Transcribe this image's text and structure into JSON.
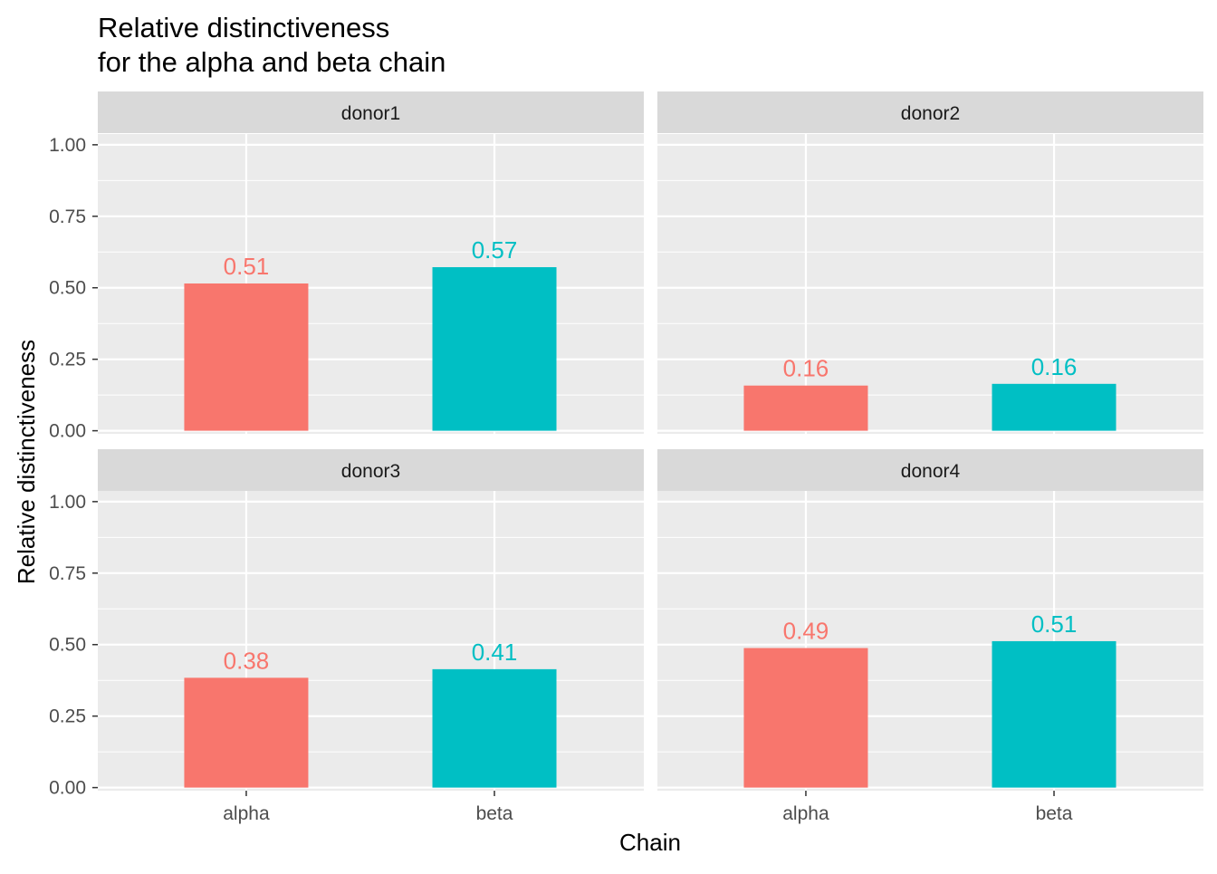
{
  "chart_data": {
    "type": "bar",
    "title": [
      "Relative distinctiveness",
      "for the alpha and beta chain"
    ],
    "xlabel": "Chain",
    "ylabel": "Relative distinctiveness",
    "categories": [
      "alpha",
      "beta"
    ],
    "ylim": [
      0,
      1.1
    ],
    "yticks": [
      "0.00",
      "0.25",
      "0.50",
      "0.75",
      "1.00"
    ],
    "yticks_values": [
      0,
      0.25,
      0.5,
      0.75,
      1.0
    ],
    "grid": true,
    "legend": "none",
    "colors": {
      "alpha": "#F8766D",
      "beta": "#00BFC4"
    },
    "facets": [
      {
        "name": "donor1",
        "values": [
          0.515,
          0.572
        ],
        "labels": [
          "0.51",
          "0.57"
        ]
      },
      {
        "name": "donor2",
        "values": [
          0.158,
          0.164
        ],
        "labels": [
          "0.16",
          "0.16"
        ]
      },
      {
        "name": "donor3",
        "values": [
          0.384,
          0.414
        ],
        "labels": [
          "0.38",
          "0.41"
        ]
      },
      {
        "name": "donor4",
        "values": [
          0.488,
          0.512
        ],
        "labels": [
          "0.49",
          "0.51"
        ]
      }
    ]
  }
}
